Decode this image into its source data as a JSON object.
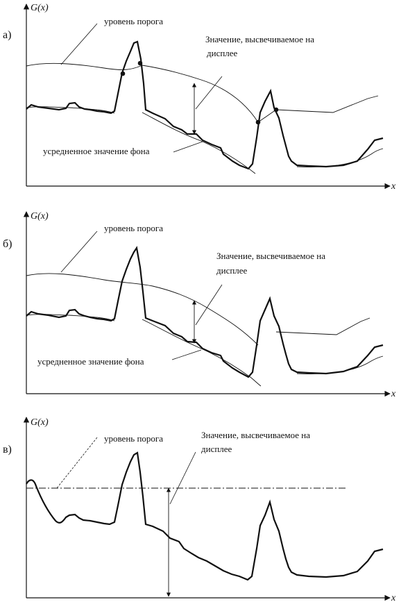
{
  "panels": [
    {
      "letter": "а)",
      "y_axis_label": "G(x)",
      "x_axis_label": "x",
      "threshold_label": "уровень порога",
      "display_value_label_line1": "Значение, высвечиваемое на",
      "display_value_label_line2": "дисплее",
      "background_label": "усредненное значение фона"
    },
    {
      "letter": "б)",
      "y_axis_label": "G(x)",
      "x_axis_label": "x",
      "threshold_label": "уровень порога",
      "display_value_label_line1": "Значение, высвечиваемое на",
      "display_value_label_line2": "дисплее",
      "background_label": "усредненное значение фона"
    },
    {
      "letter": "в)",
      "y_axis_label": "G(x)",
      "x_axis_label": "x",
      "threshold_label": "уровень порога",
      "display_value_label_line1": "Значение, высвечиваемое на",
      "display_value_label_line2": "дисплее"
    }
  ]
}
